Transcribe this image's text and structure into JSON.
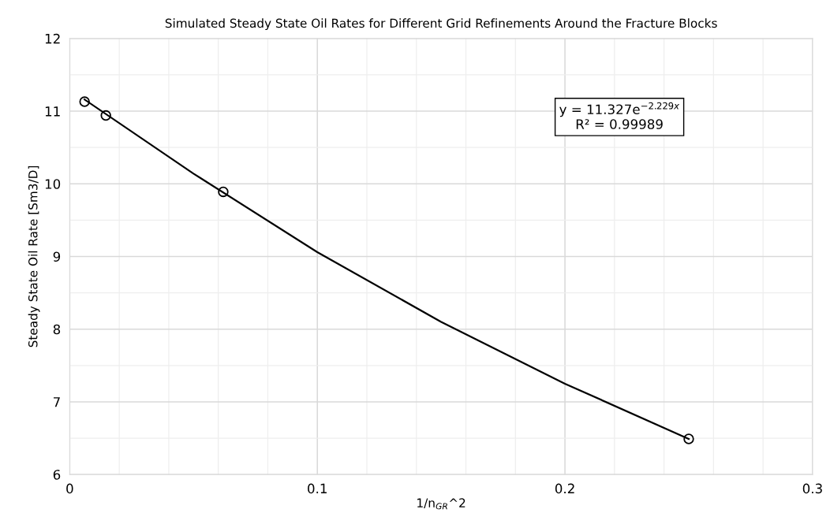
{
  "chart_data": {
    "type": "scatter",
    "title": "Simulated Steady State Oil Rates for Different Grid Refinements Around the Fracture Blocks",
    "xlabel": "1/n$_{GR}$^2",
    "ylabel": "Steady State Oil Rate [Sm3/D]",
    "series": [
      {
        "color": "#000000",
        "marker": "circle",
        "x": [
          0.006,
          0.0146,
          0.062,
          0.25
        ],
        "values": [
          11.13,
          10.94,
          9.89,
          6.49
        ]
      },
      {
        "type": "line",
        "color": "#000000",
        "marker": "none",
        "line_style": "solid",
        "x": [
          0.006,
          0.05,
          0.1,
          0.15,
          0.2,
          0.25
        ],
        "values": [
          11.16,
          10.14,
          9.06,
          8.1,
          7.25,
          6.49
        ]
      }
    ],
    "annotations": [
      "y = 11.327e$^{−2.229x}$\nR² = 0.99989"
    ],
    "xlim": [
      0,
      0.3
    ],
    "xticks": [
      0,
      0.1,
      0.2,
      0.3
    ],
    "ylim": [
      6,
      12
    ],
    "yticks": [
      6,
      7,
      8,
      9,
      10,
      11,
      12
    ],
    "grid": true,
    "legend": false
  }
}
